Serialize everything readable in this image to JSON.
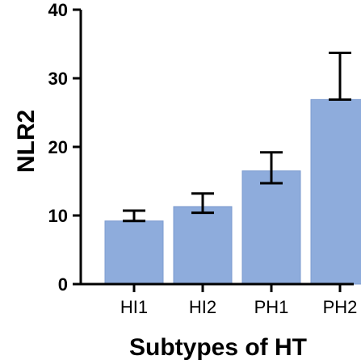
{
  "chart_data": {
    "type": "bar",
    "title": "",
    "xlabel": "Subtypes of HT",
    "ylabel": "NLR2",
    "categories": [
      "HI1",
      "HI2",
      "PH1",
      "PH2"
    ],
    "values": [
      9.2,
      11.3,
      16.5,
      26.9
    ],
    "errors_upper": [
      10.7,
      13.2,
      19.2,
      33.7
    ],
    "errors_lower": [
      9.2,
      10.4,
      14.7,
      26.9
    ],
    "ylim": [
      0,
      40
    ],
    "yticks": [
      "0",
      "10",
      "20",
      "30",
      "40"
    ],
    "grid": false,
    "bar_color": "#8eacdc",
    "bar_edge_color": "#7c9bcf"
  }
}
